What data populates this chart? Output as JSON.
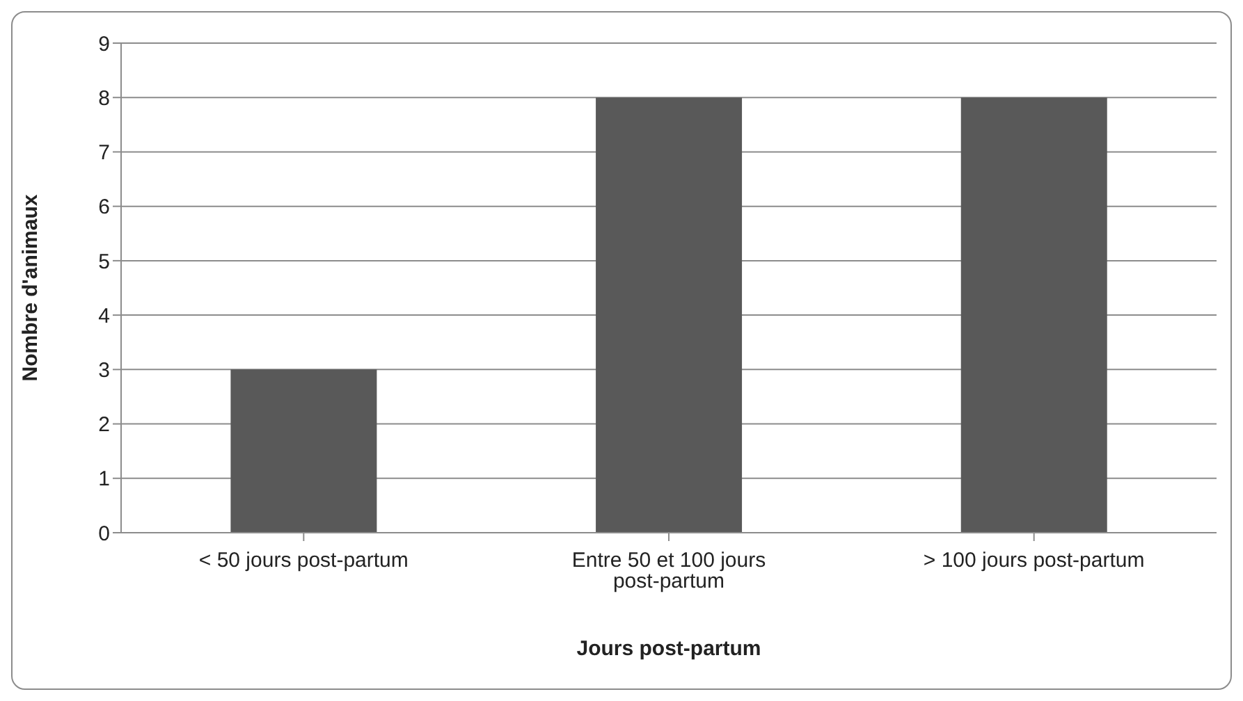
{
  "chart_data": {
    "type": "bar",
    "categories": [
      "< 50 jours post-partum",
      "Entre 50 et 100 jours post-partum",
      "> 100 jours post-partum"
    ],
    "values": [
      3,
      8,
      8
    ],
    "color": "#595959",
    "xlabel": "Jours post-partum",
    "ylabel": "Nombre d'animaux",
    "ylim": [
      0,
      9
    ],
    "yticks": [
      0,
      1,
      2,
      3,
      4,
      5,
      6,
      7,
      8,
      9
    ],
    "grid": "y"
  }
}
